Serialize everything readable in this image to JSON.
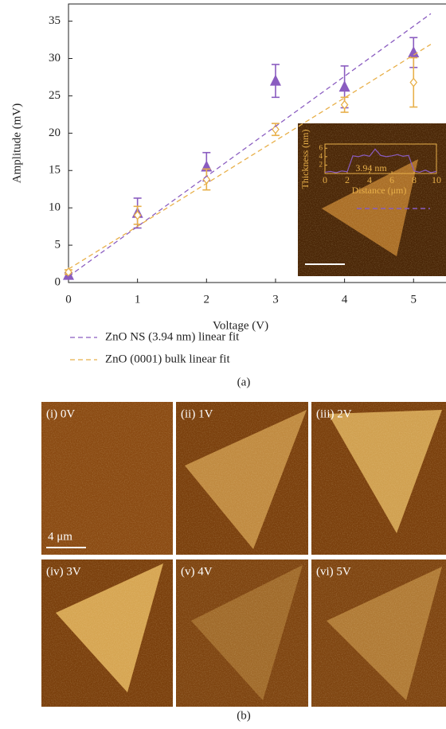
{
  "chart_data": [
    {
      "type": "scatter",
      "label": "(a)",
      "x_label": "Voltage (V)",
      "y_label": "Amplitude (mV)",
      "xlim": [
        0,
        5.47
      ],
      "ylim": [
        0,
        37.3
      ],
      "xticks": [
        0,
        1,
        2,
        3,
        4,
        5
      ],
      "yticks": [
        0,
        5,
        10,
        15,
        20,
        25,
        30,
        35
      ],
      "legend": "bottom",
      "series": [
        {
          "kind": "points",
          "marker": "triangle",
          "color": "#8a5cc0",
          "x": [
            0,
            1,
            2,
            3,
            4,
            5
          ],
          "values": [
            1.0,
            9.3,
            15.5,
            27.0,
            26.2,
            30.8
          ],
          "errors": [
            0.3,
            2.0,
            1.9,
            2.2,
            2.8,
            2.0
          ]
        },
        {
          "kind": "points",
          "marker": "diamond",
          "color": "#e8b04a",
          "x": [
            0,
            1,
            2,
            3,
            4,
            5
          ],
          "values": [
            1.4,
            9.0,
            13.8,
            20.5,
            23.8,
            26.8
          ],
          "errors": [
            0.3,
            1.2,
            1.4,
            0.8,
            1.0,
            3.3
          ]
        },
        {
          "kind": "fit",
          "name": "ZnO NS (3.94 nm) linear fit",
          "color": "#8a5cc0",
          "x": [
            0,
            5.25
          ],
          "values": [
            0.8,
            36.0
          ]
        },
        {
          "kind": "fit",
          "name": "ZnO (0001) bulk linear fit",
          "color": "#e8b04a",
          "x": [
            0,
            5.25
          ],
          "values": [
            1.8,
            31.9
          ]
        }
      ]
    },
    {
      "type": "line",
      "x_label": "Distance (μm)",
      "y_label": "Thickness (nm)",
      "annotation": "3.94 nm",
      "xlim": [
        0,
        10
      ],
      "ylim": [
        0,
        7
      ],
      "xticks": [
        0,
        2,
        4,
        6,
        8,
        10
      ],
      "yticks": [
        2,
        4,
        6
      ],
      "text_color": "#e8b04a",
      "series": [
        {
          "color": "#8a5cc0",
          "x": [
            0,
            0.5,
            1,
            1.5,
            2,
            2.5,
            3,
            3.5,
            4,
            4.5,
            5,
            5.5,
            6,
            6.5,
            7,
            7.5,
            8,
            8.5,
            9,
            9.5,
            10
          ],
          "values": [
            0.3,
            0.5,
            0.2,
            0.6,
            0.4,
            4.2,
            4.0,
            4.4,
            4.1,
            5.8,
            4.3,
            4.0,
            4.2,
            4.5,
            4.1,
            4.3,
            0.6,
            0.3,
            0.8,
            0.2,
            0.5
          ]
        }
      ]
    }
  ],
  "panel_b": {
    "label": "(b)",
    "tiles": [
      "(i) 0V",
      "(ii) 1V",
      "(iii) 2V",
      "(iv) 3V",
      "(v) 4V",
      "(vi) 5V"
    ],
    "scale_bar": "4 μm"
  }
}
